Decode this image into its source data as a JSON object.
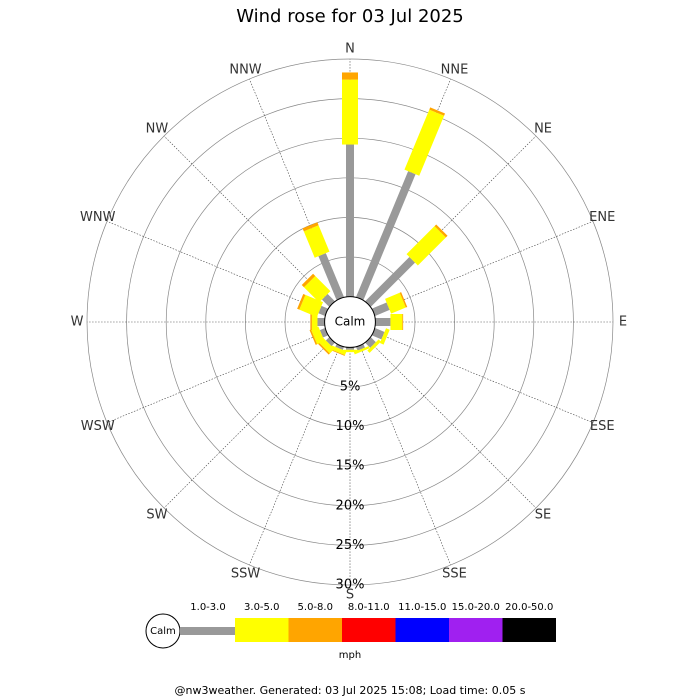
{
  "chart_data": {
    "type": "windrose",
    "title": "Wind rose for 03 Jul 2025",
    "categories": [
      "N",
      "NNE",
      "NE",
      "ENE",
      "E",
      "ESE",
      "SE",
      "SSE",
      "S",
      "SSW",
      "SW",
      "WSW",
      "W",
      "WNW",
      "NW",
      "NNW"
    ],
    "series": [
      {
        "name": "1.0-3.0",
        "color": "#999999",
        "values": [
          19.2,
          17.2,
          7.9,
          2.0,
          1.9,
          1.3,
          0.9,
          0.5,
          0.3,
          0.4,
          0.6,
          0.7,
          0.9,
          0.9,
          1.3,
          6.0
        ]
      },
      {
        "name": "3.0-5.0",
        "color": "#ffff00",
        "values": [
          8.2,
          8.2,
          5.0,
          2.0,
          1.5,
          0.5,
          0.4,
          0.3,
          0.3,
          0.5,
          0.8,
          1.0,
          0.7,
          2.4,
          2.7,
          3.6
        ]
      },
      {
        "name": "5.0-8.0",
        "color": "#ffa500",
        "values": [
          0.9,
          0.3,
          0.3,
          0.2,
          0.1,
          0,
          0,
          0,
          0,
          0.1,
          0.2,
          0.2,
          0.2,
          0.3,
          0.4,
          0.4
        ]
      },
      {
        "name": "8.0-11.0",
        "color": "#ff0000",
        "values": [
          0,
          0,
          0,
          0,
          0,
          0,
          0,
          0,
          0,
          0,
          0,
          0,
          0,
          0,
          0,
          0
        ]
      },
      {
        "name": "11.0-15.0",
        "color": "#0000ff",
        "values": [
          0,
          0,
          0,
          0,
          0,
          0,
          0,
          0,
          0,
          0,
          0,
          0,
          0,
          0,
          0,
          0
        ]
      },
      {
        "name": "15.0-20.0",
        "color": "#a020f0",
        "values": [
          0,
          0,
          0,
          0,
          0,
          0,
          0,
          0,
          0,
          0,
          0,
          0,
          0,
          0,
          0,
          0
        ]
      },
      {
        "name": "20.0-50.0",
        "color": "#000000",
        "values": [
          0,
          0,
          0,
          0,
          0,
          0,
          0,
          0,
          0,
          0,
          0,
          0,
          0,
          0,
          0,
          0
        ]
      }
    ],
    "rlim": [
      0,
      30
    ],
    "rticks": [
      {
        "value": 5,
        "label": "5%"
      },
      {
        "value": 10,
        "label": "10%"
      },
      {
        "value": 15,
        "label": "15%"
      },
      {
        "value": 20,
        "label": "20%"
      },
      {
        "value": 25,
        "label": "25%"
      },
      {
        "value": 30,
        "label": "30%"
      }
    ],
    "center_label": "Calm",
    "legend_calm": "Calm",
    "legend_unit": "mph",
    "footer": "@nw3weather. Generated: 03 Jul 2025 15:08; Load time: 0.05 s"
  }
}
